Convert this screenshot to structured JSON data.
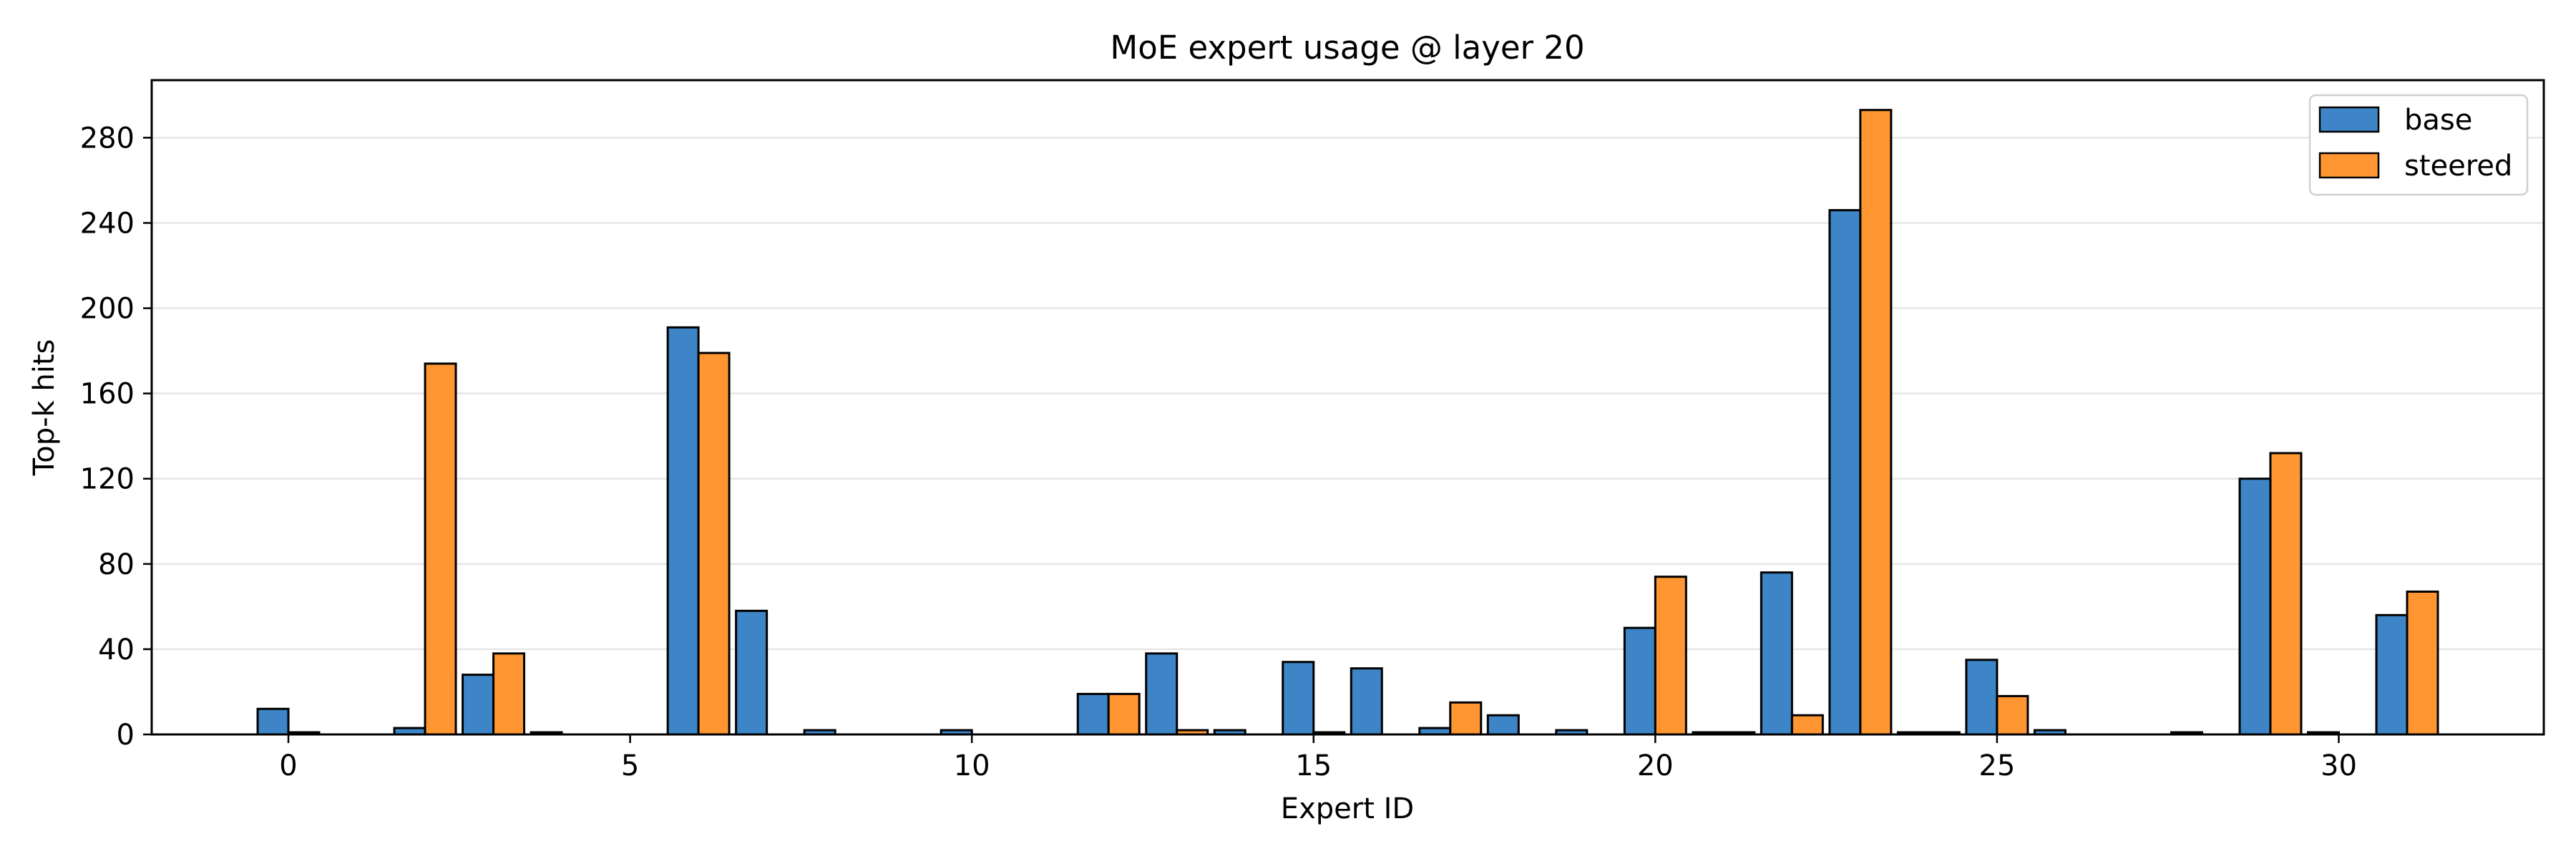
{
  "chart_data": {
    "type": "bar",
    "title": "MoE expert usage @ layer 20",
    "xlabel": "Expert ID",
    "ylabel": "Top-k hits",
    "x": [
      0,
      1,
      2,
      3,
      4,
      5,
      6,
      7,
      8,
      9,
      10,
      11,
      12,
      13,
      14,
      15,
      16,
      17,
      18,
      19,
      20,
      21,
      22,
      23,
      24,
      25,
      26,
      27,
      28,
      29,
      30,
      31
    ],
    "xlim": [
      -2,
      33
    ],
    "ylim": [
      0,
      307
    ],
    "xticks": [
      0,
      5,
      10,
      15,
      20,
      25,
      30
    ],
    "yticks": [
      0,
      40,
      80,
      120,
      160,
      200,
      240,
      280
    ],
    "grid": "horizontal",
    "legend_position": "top-right",
    "series": [
      {
        "name": "base",
        "color": "#3d85c6",
        "values": [
          12,
          0,
          3,
          28,
          1,
          0,
          191,
          58,
          2,
          0,
          2,
          0,
          19,
          38,
          2,
          34,
          31,
          3,
          9,
          2,
          50,
          1,
          76,
          246,
          1,
          35,
          2,
          0,
          1,
          120,
          1,
          56
        ]
      },
      {
        "name": "steered",
        "color": "#ff9632",
        "values": [
          1,
          0,
          174,
          38,
          0,
          0,
          179,
          0,
          0,
          0,
          0,
          0,
          19,
          2,
          0,
          1,
          0,
          15,
          0,
          0,
          74,
          1,
          9,
          293,
          1,
          18,
          0,
          0,
          0,
          132,
          0,
          67
        ]
      }
    ]
  }
}
